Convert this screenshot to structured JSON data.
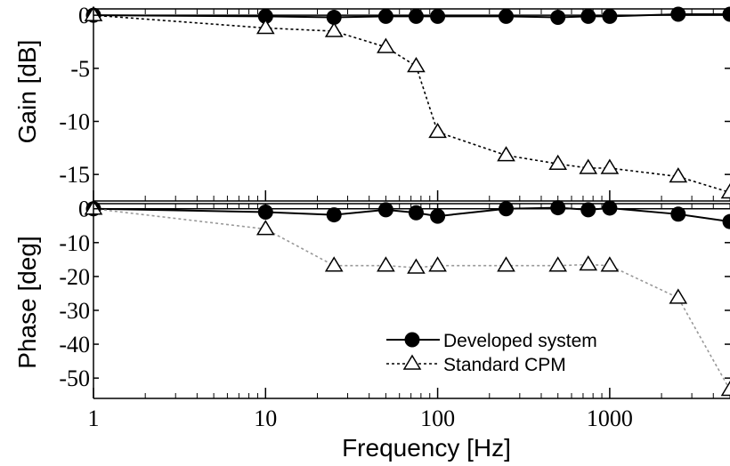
{
  "chart_data": [
    {
      "type": "line",
      "panel": "gain",
      "xscale": "log",
      "xlim": [
        1,
        5000
      ],
      "ylim": [
        -17.5,
        0.6
      ],
      "ylabel": "Gain [dB]",
      "yticks": [
        0,
        -5,
        -10,
        -15
      ],
      "ytick_labels": [
        "0",
        "-5",
        "-10",
        "-15"
      ],
      "series": [
        {
          "name": "Developed system",
          "marker": "filled-circle",
          "line": "solid",
          "color": "#000000",
          "x": [
            1,
            10,
            25,
            50,
            75,
            100,
            250,
            500,
            750,
            1000,
            2500,
            5000
          ],
          "y": [
            0,
            -0.1,
            -0.2,
            -0.1,
            -0.1,
            -0.1,
            -0.1,
            -0.2,
            -0.1,
            -0.1,
            0.1,
            0.1
          ]
        },
        {
          "name": "Standard CPM",
          "marker": "open-triangle",
          "line": "dotted",
          "color": "#000000",
          "x": [
            1,
            10,
            25,
            50,
            75,
            100,
            250,
            500,
            750,
            1000,
            2500,
            5000
          ],
          "y": [
            0,
            -1.2,
            -1.5,
            -3.0,
            -4.8,
            -11.0,
            -13.2,
            -14.0,
            -14.4,
            -14.4,
            -15.2,
            -16.7
          ]
        }
      ]
    },
    {
      "type": "line",
      "panel": "phase",
      "xscale": "log",
      "xlim": [
        1,
        5000
      ],
      "ylim": [
        -56,
        1.5
      ],
      "xlabel": "Frequency [Hz]",
      "ylabel": "Phase [deg]",
      "xticks": [
        1,
        10,
        100,
        1000
      ],
      "xtick_labels": [
        "1",
        "10",
        "100",
        "1000"
      ],
      "yticks": [
        0,
        -10,
        -20,
        -30,
        -40,
        -50
      ],
      "ytick_labels": [
        "0",
        "-10",
        "-20",
        "-30",
        "-40",
        "-50"
      ],
      "legend": "bottom-right",
      "series": [
        {
          "name": "Developed system",
          "marker": "filled-circle",
          "line": "solid",
          "color": "#000000",
          "x": [
            1,
            10,
            25,
            50,
            75,
            100,
            250,
            500,
            750,
            1000,
            2500,
            5000
          ],
          "y": [
            0,
            -1,
            -1.8,
            -0.3,
            -1.2,
            -2.2,
            0,
            0.3,
            -0.3,
            0.2,
            -1.6,
            -3.8
          ]
        },
        {
          "name": "Standard CPM",
          "marker": "open-triangle",
          "line": "dotted",
          "color": "#999999",
          "x": [
            1,
            10,
            25,
            50,
            75,
            100,
            250,
            500,
            750,
            1000,
            2500,
            5000
          ],
          "y": [
            0,
            -6,
            -16.8,
            -16.8,
            -17.4,
            -16.8,
            -16.8,
            -16.8,
            -16.5,
            -16.8,
            -26.3,
            -53.5
          ]
        }
      ]
    }
  ]
}
